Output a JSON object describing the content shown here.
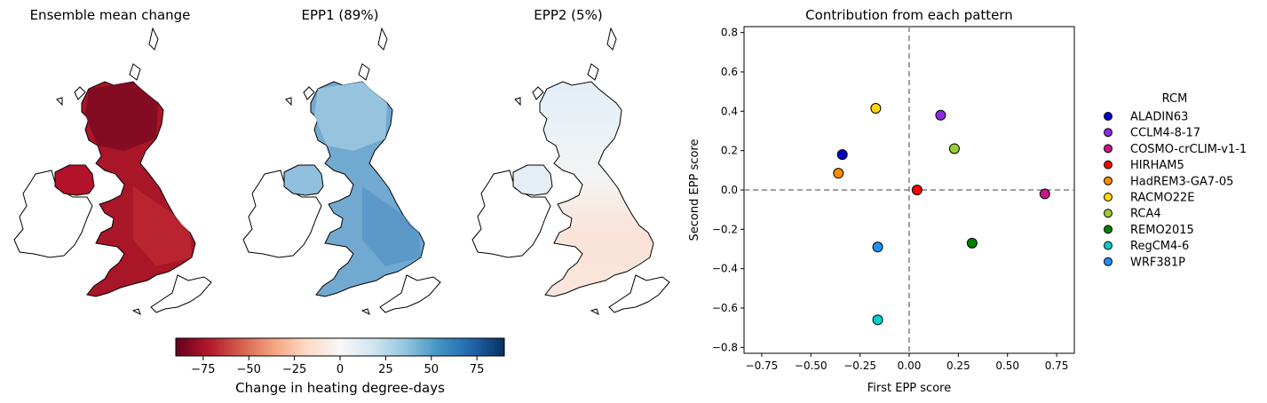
{
  "maps": [
    {
      "title": "Ensemble mean change"
    },
    {
      "title": "EPP1 (89%)"
    },
    {
      "title": "EPP2 (5%)"
    }
  ],
  "colorbar": {
    "label": "Change in heating degree-days",
    "range": [
      -90,
      90
    ],
    "ticks": [
      "−75",
      "−50",
      "−25",
      "0",
      "25",
      "50",
      "75"
    ],
    "tick_values": [
      -75,
      -50,
      -25,
      0,
      25,
      50,
      75
    ],
    "colormap": "RdBu"
  },
  "chart_data": {
    "type": "scatter",
    "title": "Contribution from each pattern",
    "xlabel": "First EPP score",
    "ylabel": "Second EPP score",
    "xlim": [
      -0.84,
      0.84
    ],
    "ylim": [
      -0.83,
      0.83
    ],
    "xticks": [
      "−0.75",
      "−0.50",
      "−0.25",
      "0.00",
      "0.25",
      "0.50",
      "0.75"
    ],
    "xtick_values": [
      -0.75,
      -0.5,
      -0.25,
      0,
      0.25,
      0.5,
      0.75
    ],
    "yticks": [
      "−0.8",
      "−0.6",
      "−0.4",
      "−0.2",
      "0.0",
      "0.2",
      "0.4",
      "0.6",
      "0.8"
    ],
    "ytick_values": [
      -0.8,
      -0.6,
      -0.4,
      -0.2,
      0,
      0.2,
      0.4,
      0.6,
      0.8
    ],
    "reference_lines": {
      "x": 0,
      "y": 0,
      "style": "dashed",
      "color": "#808080"
    },
    "grid": false,
    "legend": {
      "title": "RCM",
      "placement": "right-outside"
    },
    "series": [
      {
        "name": "ALADIN63",
        "x": -0.34,
        "y": 0.18,
        "color": "#0000cd"
      },
      {
        "name": "CCLM4-8-17",
        "x": 0.16,
        "y": 0.38,
        "color": "#8a2be2"
      },
      {
        "name": "COSMO-crCLIM-v1-1",
        "x": 0.69,
        "y": -0.02,
        "color": "#c71585"
      },
      {
        "name": "HIRHAM5",
        "x": 0.04,
        "y": 0.0,
        "color": "#ff0000"
      },
      {
        "name": "HadREM3-GA7-05",
        "x": -0.36,
        "y": 0.085,
        "color": "#ff8c00"
      },
      {
        "name": "RACMO22E",
        "x": -0.17,
        "y": 0.415,
        "color": "#ffd700"
      },
      {
        "name": "RCA4",
        "x": 0.23,
        "y": 0.21,
        "color": "#9acd32"
      },
      {
        "name": "REMO2015",
        "x": 0.32,
        "y": -0.27,
        "color": "#008000"
      },
      {
        "name": "RegCM4-6",
        "x": -0.16,
        "y": -0.66,
        "color": "#00ced1"
      },
      {
        "name": "WRF381P",
        "x": -0.16,
        "y": -0.29,
        "color": "#1e90ff"
      }
    ]
  }
}
